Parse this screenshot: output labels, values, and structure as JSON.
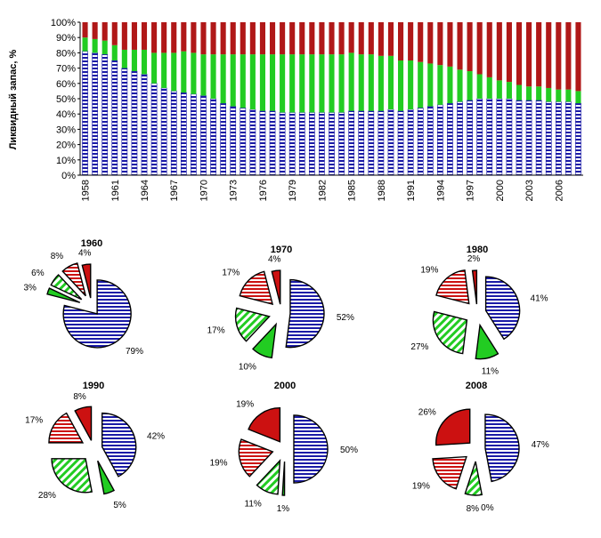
{
  "colors": {
    "blue": "#1a1aa6",
    "green": "#22cc22",
    "red": "#cc1111",
    "bar_red": "#b01818"
  },
  "chart_data": [
    {
      "type": "bar",
      "stacked": true,
      "ylabel": "Ликвидный запас, %",
      "yticks": [
        "0%",
        "10%",
        "20%",
        "30%",
        "40%",
        "50%",
        "60%",
        "70%",
        "80%",
        "90%",
        "100%"
      ],
      "ylim": [
        0,
        100
      ],
      "xtick_labels": [
        "1958",
        "1961",
        "1964",
        "1967",
        "1970",
        "1973",
        "1976",
        "1979",
        "1982",
        "1985",
        "1988",
        "1991",
        "1994",
        "1997",
        "2000",
        "2003",
        "2006"
      ],
      "categories": [
        "1958",
        "1959",
        "1960",
        "1961",
        "1962",
        "1963",
        "1964",
        "1965",
        "1966",
        "1967",
        "1968",
        "1969",
        "1970",
        "1971",
        "1972",
        "1973",
        "1974",
        "1975",
        "1976",
        "1977",
        "1978",
        "1979",
        "1980",
        "1981",
        "1982",
        "1983",
        "1984",
        "1985",
        "1986",
        "1987",
        "1988",
        "1989",
        "1990",
        "1991",
        "1992",
        "1993",
        "1994",
        "1995",
        "1996",
        "1997",
        "1998",
        "1999",
        "2000",
        "2001",
        "2002",
        "2003",
        "2004",
        "2005",
        "2006",
        "2007",
        "2008"
      ],
      "series": [
        {
          "color": "blue",
          "values": [
            81,
            80,
            79,
            75,
            70,
            68,
            66,
            60,
            57,
            55,
            54,
            53,
            52,
            50,
            47,
            45,
            44,
            43,
            42,
            42,
            41,
            41,
            41,
            41,
            41,
            41,
            41,
            42,
            42,
            42,
            42,
            43,
            42,
            43,
            44,
            45,
            46,
            47,
            48,
            49,
            50,
            50,
            50,
            50,
            49,
            49,
            49,
            48,
            48,
            48,
            47
          ]
        },
        {
          "color": "green",
          "values": [
            9,
            9,
            9,
            10,
            12,
            14,
            16,
            20,
            23,
            25,
            27,
            27,
            27,
            29,
            32,
            34,
            35,
            36,
            37,
            37,
            38,
            38,
            38,
            38,
            38,
            38,
            38,
            38,
            37,
            37,
            36,
            35,
            33,
            32,
            30,
            28,
            26,
            24,
            21,
            19,
            16,
            14,
            12,
            11,
            10,
            9,
            9,
            9,
            8,
            8,
            8
          ]
        },
        {
          "color": "red",
          "values": [
            10,
            11,
            12,
            15,
            18,
            18,
            18,
            20,
            20,
            20,
            19,
            20,
            21,
            21,
            21,
            21,
            21,
            21,
            21,
            21,
            21,
            21,
            21,
            21,
            21,
            21,
            21,
            20,
            21,
            21,
            22,
            22,
            25,
            25,
            26,
            27,
            28,
            29,
            31,
            32,
            34,
            36,
            38,
            39,
            41,
            42,
            42,
            43,
            44,
            44,
            45
          ]
        }
      ]
    },
    {
      "type": "pie",
      "title": "1960",
      "slices": [
        {
          "label": "79%",
          "value": 79,
          "color": "blue",
          "hatch": "h"
        },
        {
          "label": "3%",
          "value": 3,
          "color": "green",
          "hatch": "solid"
        },
        {
          "label": "6%",
          "value": 6,
          "color": "green",
          "hatch": "d"
        },
        {
          "label": "8%",
          "value": 8,
          "color": "red",
          "hatch": "h"
        },
        {
          "label": "4%",
          "value": 4,
          "color": "red",
          "hatch": "solid"
        }
      ]
    },
    {
      "type": "pie",
      "title": "1970",
      "slices": [
        {
          "label": "52%",
          "value": 52,
          "color": "blue",
          "hatch": "h"
        },
        {
          "label": "10%",
          "value": 10,
          "color": "green",
          "hatch": "solid"
        },
        {
          "label": "17%",
          "value": 17,
          "color": "green",
          "hatch": "d"
        },
        {
          "label": "17%",
          "value": 17,
          "color": "red",
          "hatch": "h"
        },
        {
          "label": "4%",
          "value": 4,
          "color": "red",
          "hatch": "solid"
        }
      ]
    },
    {
      "type": "pie",
      "title": "1980",
      "slices": [
        {
          "label": "41%",
          "value": 41,
          "color": "blue",
          "hatch": "h"
        },
        {
          "label": "11%",
          "value": 11,
          "color": "green",
          "hatch": "solid"
        },
        {
          "label": "27%",
          "value": 27,
          "color": "green",
          "hatch": "d"
        },
        {
          "label": "19%",
          "value": 19,
          "color": "red",
          "hatch": "h"
        },
        {
          "label": "2%",
          "value": 2,
          "color": "red",
          "hatch": "solid"
        }
      ]
    },
    {
      "type": "pie",
      "title": "1990",
      "slices": [
        {
          "label": "42%",
          "value": 42,
          "color": "blue",
          "hatch": "h"
        },
        {
          "label": "5%",
          "value": 5,
          "color": "green",
          "hatch": "solid"
        },
        {
          "label": "28%",
          "value": 28,
          "color": "green",
          "hatch": "d"
        },
        {
          "label": "17%",
          "value": 17,
          "color": "red",
          "hatch": "h"
        },
        {
          "label": "8%",
          "value": 8,
          "color": "red",
          "hatch": "solid"
        }
      ]
    },
    {
      "type": "pie",
      "title": "2000",
      "slices": [
        {
          "label": "50%",
          "value": 50,
          "color": "blue",
          "hatch": "h"
        },
        {
          "label": "1%",
          "value": 1,
          "color": "green",
          "hatch": "solid"
        },
        {
          "label": "11%",
          "value": 11,
          "color": "green",
          "hatch": "d"
        },
        {
          "label": "19%",
          "value": 19,
          "color": "red",
          "hatch": "h"
        },
        {
          "label": "19%",
          "value": 19,
          "color": "red",
          "hatch": "solid"
        }
      ]
    },
    {
      "type": "pie",
      "title": "2008",
      "slices": [
        {
          "label": "47%",
          "value": 47,
          "color": "blue",
          "hatch": "h"
        },
        {
          "label": "0%",
          "value": 0,
          "color": "green",
          "hatch": "solid"
        },
        {
          "label": "8%",
          "value": 8,
          "color": "green",
          "hatch": "d"
        },
        {
          "label": "19%",
          "value": 19,
          "color": "red",
          "hatch": "h"
        },
        {
          "label": "26%",
          "value": 26,
          "color": "red",
          "hatch": "solid"
        }
      ]
    }
  ]
}
